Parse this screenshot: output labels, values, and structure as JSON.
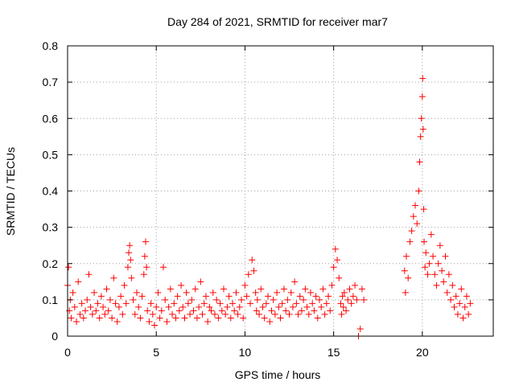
{
  "chart_data": {
    "type": "scatter",
    "title": "Day 284 of 2021, SRMTID for receiver mar7",
    "xlabel": "GPS time / hours",
    "ylabel": "SRMTID / TECUs",
    "xlim": [
      0,
      24
    ],
    "ylim": [
      0,
      0.8
    ],
    "x_ticks": [
      0,
      5,
      10,
      15,
      20
    ],
    "x_tick_labels": [
      "0",
      "5",
      "10",
      "15",
      "20"
    ],
    "y_ticks": [
      0,
      0.1,
      0.2,
      0.3,
      0.4,
      0.5,
      0.6,
      0.7,
      0.8
    ],
    "y_tick_labels": [
      "0",
      "0.1",
      "0.2",
      "0.3",
      "0.4",
      "0.5",
      "0.6",
      "0.7",
      "0.8"
    ],
    "grid": true,
    "marker": "+",
    "series_color": "#ff0000",
    "series": [
      {
        "name": "SRMTID",
        "x": [
          0.0,
          0.05,
          0.1,
          0.15,
          0.2,
          0.3,
          0.4,
          0.5,
          0.6,
          0.7,
          0.8,
          0.9,
          1.0,
          1.1,
          1.2,
          1.3,
          1.4,
          1.5,
          1.6,
          1.7,
          1.8,
          1.9,
          2.0,
          2.1,
          2.2,
          2.3,
          2.4,
          2.5,
          2.6,
          2.7,
          2.8,
          2.9,
          3.0,
          3.1,
          3.2,
          3.3,
          3.4,
          3.45,
          3.5,
          3.55,
          3.6,
          3.7,
          3.8,
          3.9,
          4.0,
          4.1,
          4.2,
          4.3,
          4.35,
          4.4,
          4.45,
          4.5,
          4.6,
          4.7,
          4.8,
          4.9,
          5.0,
          5.1,
          5.2,
          5.3,
          5.4,
          5.5,
          5.6,
          5.7,
          5.8,
          5.9,
          6.0,
          6.1,
          6.2,
          6.3,
          6.4,
          6.5,
          6.6,
          6.7,
          6.8,
          6.9,
          7.0,
          7.1,
          7.2,
          7.3,
          7.4,
          7.5,
          7.6,
          7.7,
          7.8,
          7.9,
          8.0,
          8.1,
          8.2,
          8.3,
          8.4,
          8.5,
          8.6,
          8.7,
          8.8,
          8.9,
          9.0,
          9.1,
          9.2,
          9.3,
          9.4,
          9.5,
          9.6,
          9.7,
          9.8,
          9.9,
          10.0,
          10.1,
          10.2,
          10.3,
          10.4,
          10.5,
          10.6,
          10.65,
          10.7,
          10.8,
          10.9,
          11.0,
          11.1,
          11.2,
          11.3,
          11.4,
          11.5,
          11.6,
          11.7,
          11.8,
          11.9,
          12.0,
          12.1,
          12.2,
          12.3,
          12.4,
          12.5,
          12.6,
          12.7,
          12.8,
          12.9,
          13.0,
          13.1,
          13.2,
          13.3,
          13.4,
          13.5,
          13.6,
          13.7,
          13.8,
          13.9,
          14.0,
          14.1,
          14.2,
          14.3,
          14.4,
          14.5,
          14.6,
          14.7,
          14.8,
          14.9,
          15.0,
          15.1,
          15.2,
          15.3,
          15.4,
          15.45,
          15.5,
          15.55,
          15.6,
          15.7,
          15.8,
          15.9,
          16.0,
          16.1,
          16.2,
          16.3,
          16.4,
          16.5,
          16.6,
          16.7,
          19.0,
          19.05,
          19.1,
          19.2,
          19.3,
          19.4,
          19.5,
          19.6,
          19.7,
          19.8,
          19.85,
          19.9,
          19.95,
          20.0,
          20.02,
          20.05,
          20.08,
          20.1,
          20.15,
          20.2,
          20.3,
          20.4,
          20.5,
          20.6,
          20.7,
          20.8,
          20.9,
          21.0,
          21.1,
          21.2,
          21.3,
          21.4,
          21.5,
          21.6,
          21.7,
          21.8,
          21.9,
          22.0,
          22.1,
          22.2,
          22.3,
          22.4,
          22.5,
          22.6,
          22.7
        ],
        "y": [
          0.14,
          0.19,
          0.07,
          0.1,
          0.05,
          0.12,
          0.08,
          0.04,
          0.15,
          0.06,
          0.09,
          0.05,
          0.07,
          0.1,
          0.17,
          0.08,
          0.06,
          0.12,
          0.07,
          0.09,
          0.05,
          0.11,
          0.08,
          0.06,
          0.13,
          0.07,
          0.1,
          0.05,
          0.16,
          0.09,
          0.04,
          0.08,
          0.11,
          0.06,
          0.14,
          0.09,
          0.19,
          0.23,
          0.25,
          0.21,
          0.16,
          0.1,
          0.06,
          0.12,
          0.08,
          0.05,
          0.11,
          0.17,
          0.22,
          0.26,
          0.19,
          0.07,
          0.04,
          0.09,
          0.06,
          0.03,
          0.08,
          0.12,
          0.05,
          0.07,
          0.19,
          0.1,
          0.04,
          0.08,
          0.13,
          0.06,
          0.09,
          0.05,
          0.11,
          0.07,
          0.14,
          0.08,
          0.05,
          0.12,
          0.09,
          0.06,
          0.1,
          0.07,
          0.13,
          0.05,
          0.08,
          0.15,
          0.06,
          0.09,
          0.11,
          0.04,
          0.08,
          0.07,
          0.12,
          0.06,
          0.1,
          0.05,
          0.09,
          0.07,
          0.13,
          0.06,
          0.08,
          0.11,
          0.05,
          0.09,
          0.07,
          0.12,
          0.06,
          0.08,
          0.1,
          0.05,
          0.14,
          0.11,
          0.17,
          0.09,
          0.21,
          0.18,
          0.12,
          0.07,
          0.1,
          0.06,
          0.13,
          0.08,
          0.05,
          0.09,
          0.11,
          0.04,
          0.07,
          0.1,
          0.06,
          0.12,
          0.08,
          0.05,
          0.09,
          0.13,
          0.07,
          0.1,
          0.06,
          0.12,
          0.08,
          0.15,
          0.09,
          0.06,
          0.11,
          0.07,
          0.1,
          0.13,
          0.08,
          0.06,
          0.12,
          0.09,
          0.07,
          0.11,
          0.05,
          0.1,
          0.08,
          0.13,
          0.06,
          0.09,
          0.11,
          0.07,
          0.14,
          0.19,
          0.24,
          0.21,
          0.16,
          0.09,
          0.06,
          0.11,
          0.08,
          0.12,
          0.07,
          0.1,
          0.13,
          0.09,
          0.11,
          0.14,
          0.1,
          0.0,
          0.02,
          0.13,
          0.1,
          0.18,
          0.12,
          0.22,
          0.16,
          0.26,
          0.29,
          0.33,
          0.36,
          0.31,
          0.4,
          0.48,
          0.55,
          0.6,
          0.66,
          0.71,
          0.57,
          0.35,
          0.26,
          0.19,
          0.23,
          0.17,
          0.2,
          0.28,
          0.22,
          0.17,
          0.14,
          0.2,
          0.25,
          0.18,
          0.15,
          0.22,
          0.12,
          0.17,
          0.1,
          0.14,
          0.08,
          0.11,
          0.06,
          0.09,
          0.13,
          0.05,
          0.08,
          0.11,
          0.06,
          0.09
        ]
      }
    ]
  }
}
